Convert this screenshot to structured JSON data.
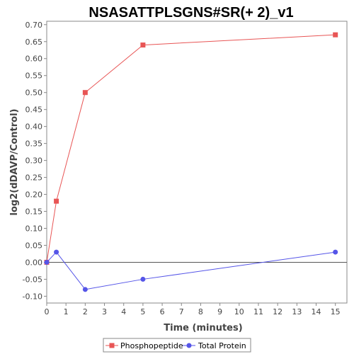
{
  "chart_data": {
    "type": "line",
    "title": "NSASATTPLSGNS#SR(+ 2)_v1",
    "xlabel": "Time (minutes)",
    "ylabel": "log2(dDAVP/Control)",
    "xlim": [
      0,
      15.6
    ],
    "ylim": [
      -0.12,
      0.71
    ],
    "xticks": [
      "0",
      "1",
      "2",
      "3",
      "4",
      "5",
      "6",
      "7",
      "8",
      "9",
      "10",
      "11",
      "12",
      "13",
      "14",
      "15"
    ],
    "yticks": [
      "-0.10",
      "-0.05",
      "0.00",
      "0.05",
      "0.10",
      "0.15",
      "0.20",
      "0.25",
      "0.30",
      "0.35",
      "0.40",
      "0.45",
      "0.50",
      "0.55",
      "0.60",
      "0.65",
      "0.70"
    ],
    "grid": false,
    "legend_position": "bottom",
    "series": [
      {
        "name": "Phosphopeptide",
        "color": "#e85555",
        "marker": "square",
        "x": [
          0,
          0.5,
          2,
          5,
          15
        ],
        "y": [
          0.0,
          0.18,
          0.5,
          0.64,
          0.67
        ]
      },
      {
        "name": "Total Protein",
        "color": "#5555e8",
        "marker": "circle",
        "x": [
          0,
          0.5,
          2,
          5,
          15
        ],
        "y": [
          0.0,
          0.03,
          -0.08,
          -0.05,
          0.03
        ]
      }
    ],
    "reference_line_y": 0
  }
}
